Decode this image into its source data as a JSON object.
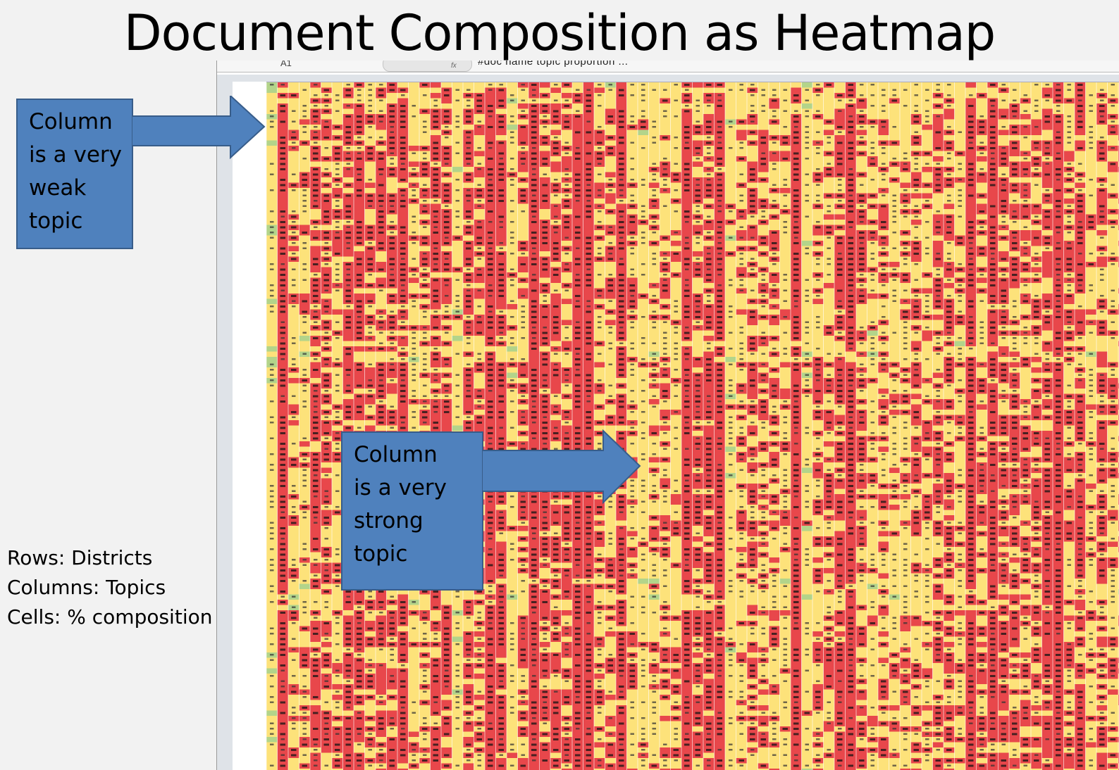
{
  "title": "Document Composition as Heatmap",
  "spreadsheet": {
    "name_box": "A1",
    "formula_text": "#doc name topic proportion ..."
  },
  "callouts": {
    "weak": [
      "Column",
      "is a very",
      "weak",
      "topic"
    ],
    "strong": [
      "Column",
      "is a very",
      "strong",
      "topic"
    ]
  },
  "legend": {
    "rows": "Rows: Districts",
    "columns": "Columns: Topics",
    "cells": "Cells: % composition"
  },
  "colors": {
    "high": "#e8474b",
    "mid": "#fde27a",
    "low": "#b3d48a",
    "callout": "#4f81bd"
  }
}
